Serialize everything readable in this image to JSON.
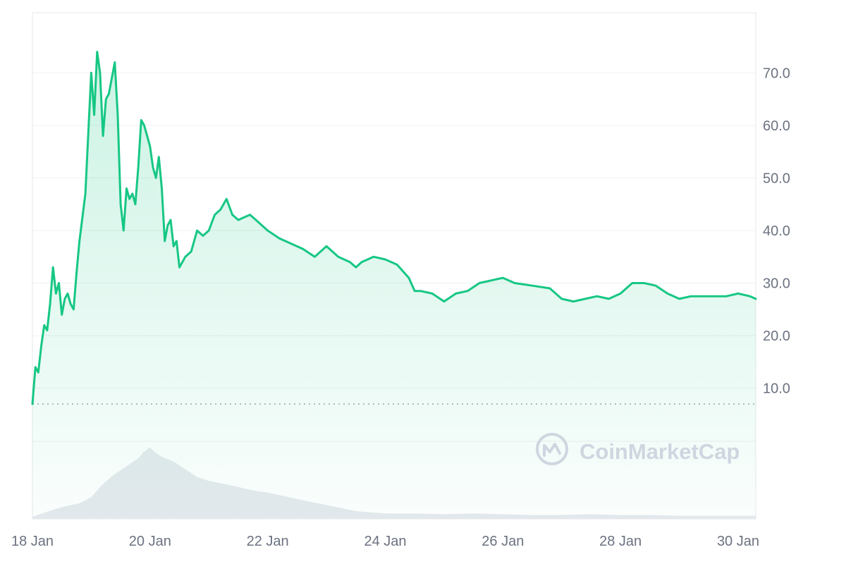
{
  "chart_data": {
    "type": "line",
    "x_tick_labels": [
      "18 Jan",
      "20 Jan",
      "22 Jan",
      "24 Jan",
      "26 Jan",
      "28 Jan",
      "30 Jan"
    ],
    "y_tick_labels": [
      "10.0",
      "20.0",
      "30.0",
      "40.0",
      "50.0",
      "60.0",
      "70.0"
    ],
    "y_ticks": [
      10,
      20,
      30,
      40,
      50,
      60,
      70
    ],
    "xlim_days": [
      18,
      30.3
    ],
    "ylim": [
      7,
      75
    ],
    "baseline": 7.0,
    "grid": true,
    "y_axis_side": "right",
    "series": [
      {
        "color": "#16c784",
        "x_days": [
          18.0,
          18.05,
          18.1,
          18.15,
          18.2,
          18.25,
          18.3,
          18.35,
          18.4,
          18.45,
          18.5,
          18.55,
          18.6,
          18.65,
          18.7,
          18.75,
          18.8,
          18.9,
          19.0,
          19.05,
          19.1,
          19.15,
          19.2,
          19.25,
          19.3,
          19.35,
          19.4,
          19.45,
          19.5,
          19.55,
          19.6,
          19.65,
          19.7,
          19.75,
          19.8,
          19.85,
          19.9,
          19.95,
          20.0,
          20.05,
          20.1,
          20.15,
          20.2,
          20.25,
          20.3,
          20.35,
          20.4,
          20.45,
          20.5,
          20.55,
          20.6,
          20.65,
          20.7,
          20.75,
          20.8,
          20.9,
          21.0,
          21.1,
          21.2,
          21.3,
          21.4,
          21.5,
          21.6,
          21.7,
          21.8,
          21.9,
          22.0,
          22.2,
          22.4,
          22.6,
          22.8,
          23.0,
          23.2,
          23.4,
          23.5,
          23.6,
          23.8,
          24.0,
          24.2,
          24.4,
          24.5,
          24.6,
          24.8,
          25.0,
          25.2,
          25.4,
          25.6,
          25.8,
          26.0,
          26.2,
          26.5,
          26.8,
          27.0,
          27.2,
          27.4,
          27.6,
          27.8,
          28.0,
          28.2,
          28.4,
          28.6,
          28.8,
          29.0,
          29.2,
          29.4,
          29.6,
          29.8,
          30.0,
          30.2,
          30.3
        ],
        "values": [
          7.0,
          14.0,
          13.0,
          18.0,
          22.0,
          21.0,
          26.0,
          33.0,
          28.0,
          30.0,
          24.0,
          27.0,
          28.0,
          26.0,
          25.0,
          32.0,
          38.0,
          47.0,
          70.0,
          62.0,
          74.0,
          70.0,
          58.0,
          65.0,
          66.0,
          69.0,
          72.0,
          62.0,
          45.0,
          40.0,
          48.0,
          46.0,
          47.0,
          45.0,
          52.0,
          61.0,
          60.0,
          58.0,
          56.0,
          52.0,
          50.0,
          54.0,
          48.0,
          38.0,
          41.0,
          42.0,
          37.0,
          38.0,
          33.0,
          34.0,
          35.0,
          35.5,
          36.0,
          38.0,
          40.0,
          39.0,
          40.0,
          43.0,
          44.0,
          46.0,
          43.0,
          42.0,
          42.5,
          43.0,
          42.0,
          41.0,
          40.0,
          38.5,
          37.5,
          36.5,
          35.0,
          37.0,
          35.0,
          34.0,
          33.0,
          34.0,
          35.0,
          34.5,
          33.5,
          31.0,
          28.5,
          28.5,
          28.0,
          26.5,
          28.0,
          28.5,
          30.0,
          30.5,
          31.0,
          30.0,
          29.5,
          29.0,
          27.0,
          26.5,
          27.0,
          27.5,
          27.0,
          28.0,
          30.0,
          30.0,
          29.5,
          28.0,
          27.0,
          27.5,
          27.5,
          27.5,
          27.5,
          28.0,
          27.5,
          27.0
        ]
      }
    ],
    "volume": {
      "color": "#e6e9ee",
      "x_days": [
        18.0,
        18.2,
        18.4,
        18.6,
        18.8,
        19.0,
        19.2,
        19.4,
        19.6,
        19.8,
        19.9,
        20.0,
        20.1,
        20.2,
        20.4,
        20.6,
        20.8,
        21.0,
        21.2,
        21.5,
        21.8,
        22.0,
        22.3,
        22.6,
        23.0,
        23.5,
        24.0,
        24.5,
        25.0,
        25.5,
        26.0,
        26.5,
        27.0,
        27.5,
        28.0,
        28.5,
        29.0,
        29.5,
        30.0,
        30.3
      ],
      "values": [
        0.03,
        0.08,
        0.13,
        0.17,
        0.2,
        0.28,
        0.45,
        0.58,
        0.68,
        0.78,
        0.87,
        0.92,
        0.85,
        0.8,
        0.74,
        0.64,
        0.54,
        0.49,
        0.46,
        0.41,
        0.36,
        0.34,
        0.29,
        0.24,
        0.18,
        0.1,
        0.07,
        0.07,
        0.06,
        0.07,
        0.06,
        0.05,
        0.05,
        0.06,
        0.05,
        0.05,
        0.04,
        0.04,
        0.04,
        0.04
      ]
    }
  },
  "watermark": {
    "text": "CoinMarketCap",
    "color": "#cfd6e0"
  }
}
